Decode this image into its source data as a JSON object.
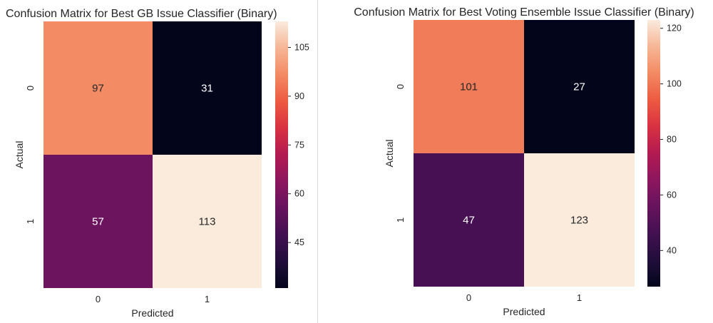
{
  "chart_data": [
    {
      "type": "heatmap",
      "title": "Confusion Matrix for Best GB Issue Classifier (Binary)",
      "xlabel": "Predicted",
      "ylabel": "Actual",
      "x_categories": [
        "0",
        "1"
      ],
      "y_categories": [
        "0",
        "1"
      ],
      "values": [
        [
          97,
          31
        ],
        [
          57,
          113
        ]
      ],
      "colormap": "rocket",
      "colorbar": {
        "range": [
          31,
          113
        ],
        "ticks": [
          45,
          60,
          75,
          90,
          105
        ]
      }
    },
    {
      "type": "heatmap",
      "title": "Confusion Matrix for Best Voting Ensemble Issue Classifier (Binary)",
      "xlabel": "Predicted",
      "ylabel": "Actual",
      "x_categories": [
        "0",
        "1"
      ],
      "y_categories": [
        "0",
        "1"
      ],
      "values": [
        [
          101,
          27
        ],
        [
          47,
          123
        ]
      ],
      "colormap": "rocket",
      "colorbar": {
        "range": [
          27,
          123
        ],
        "ticks": [
          40,
          60,
          80,
          100,
          120
        ]
      }
    }
  ]
}
